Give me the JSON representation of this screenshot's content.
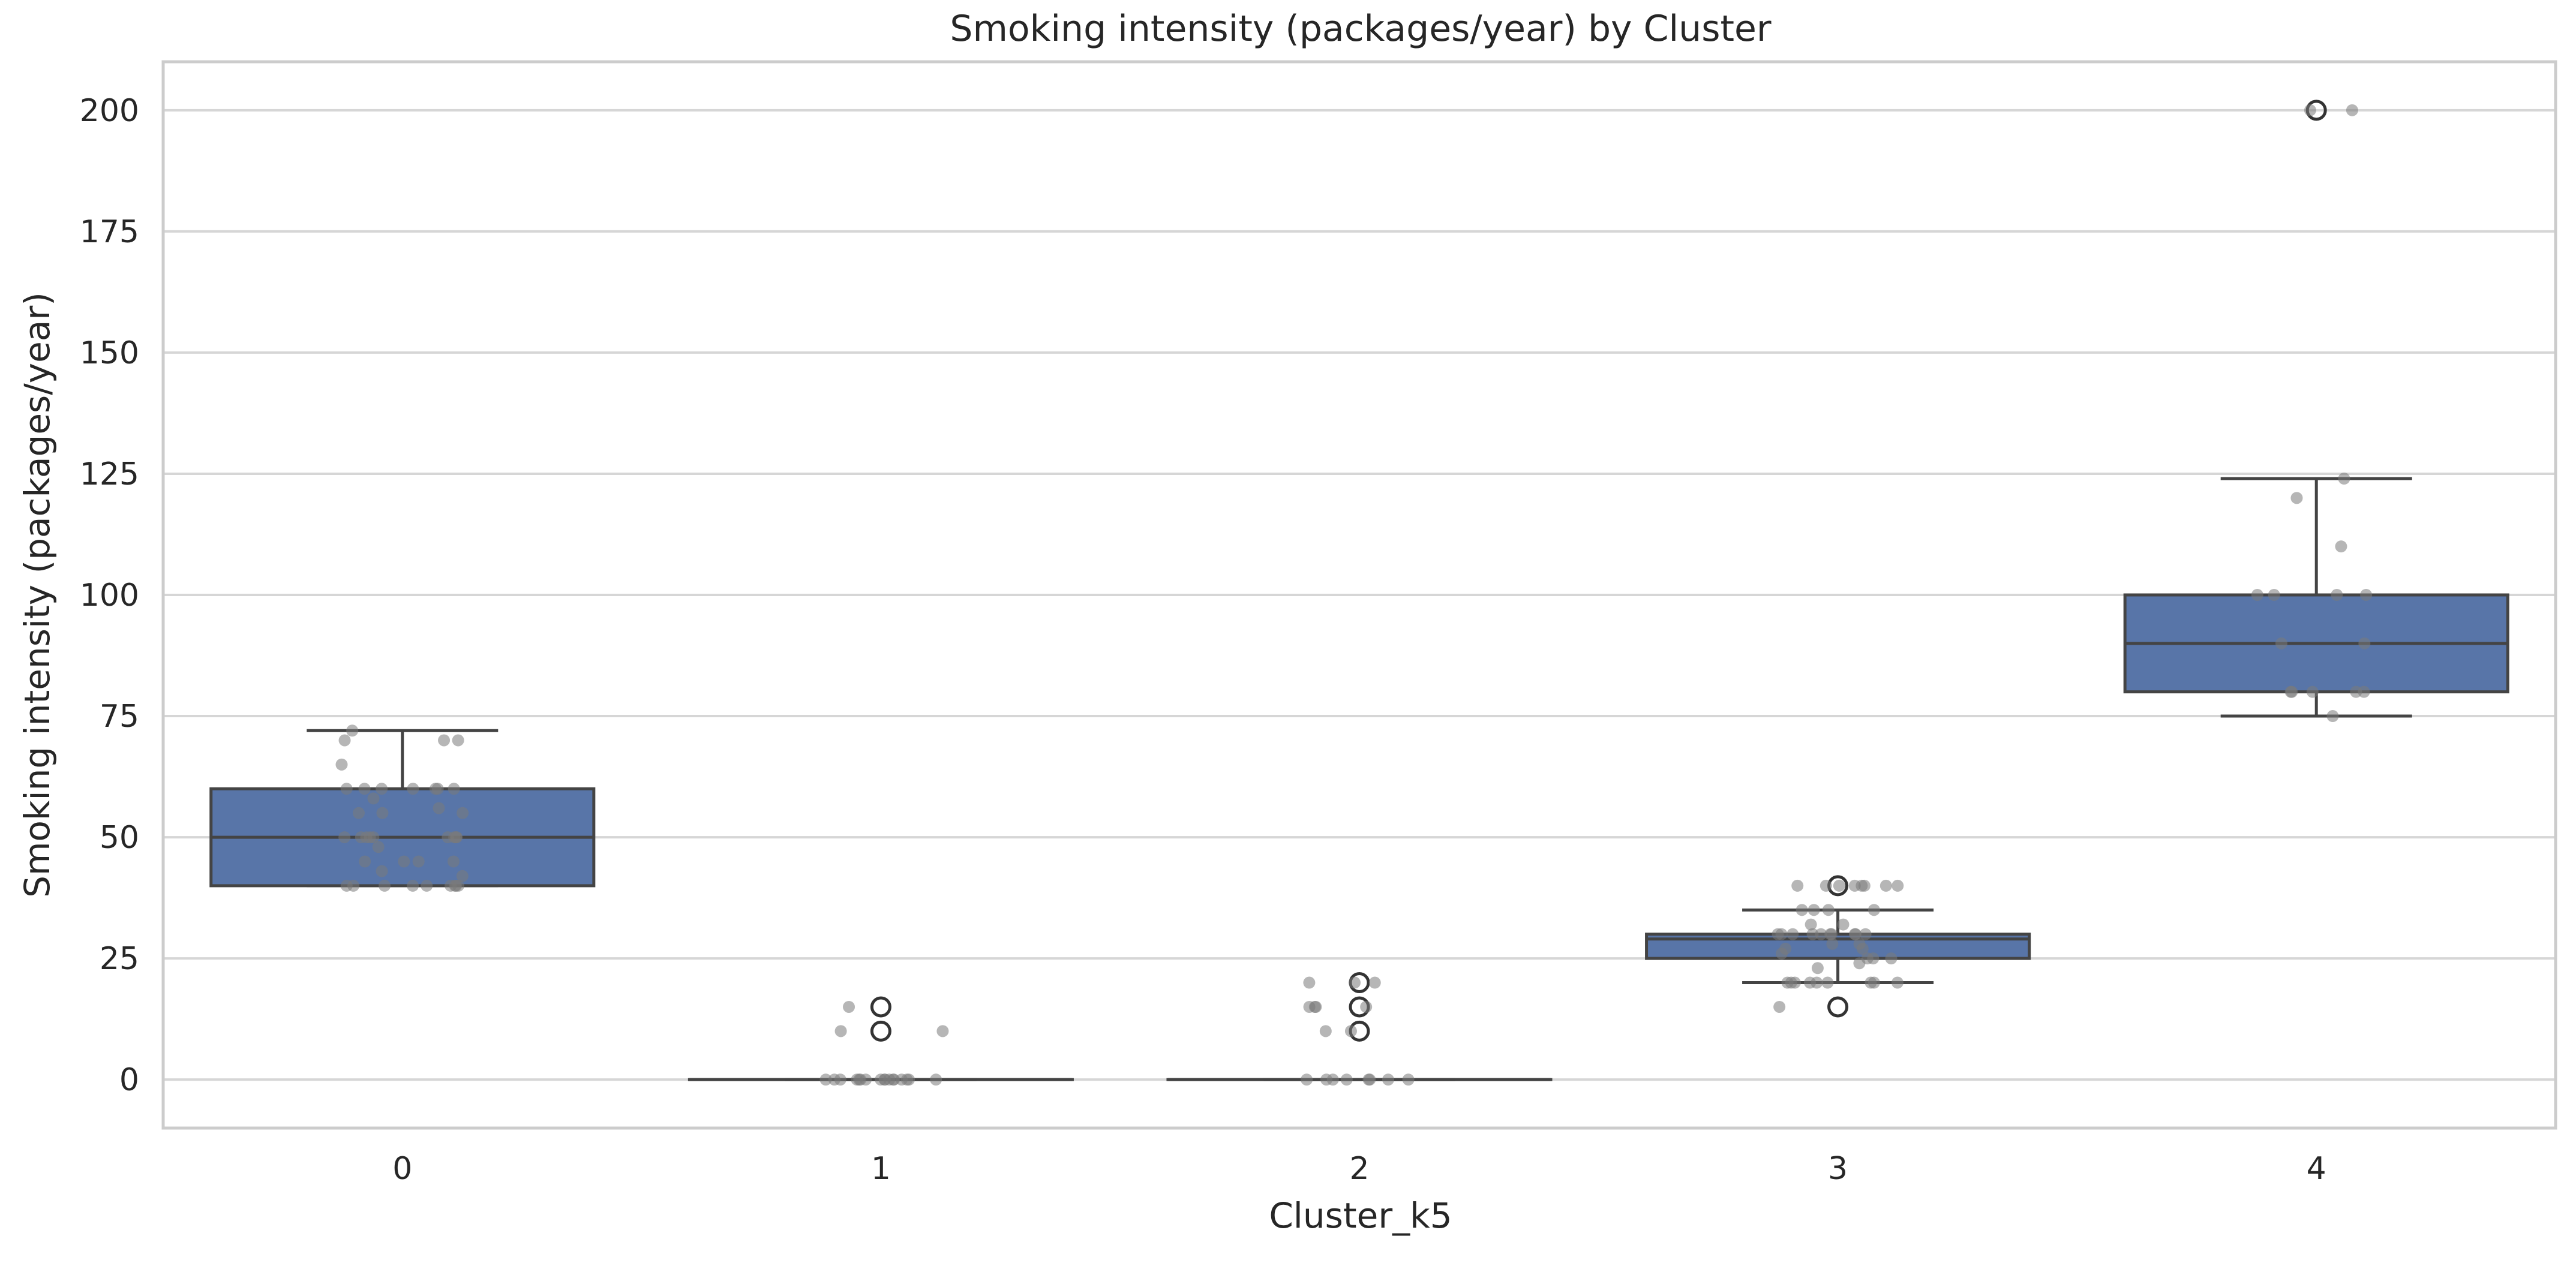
{
  "chart_data": {
    "type": "box",
    "title": "Smoking intensity (packages/year) by Cluster",
    "xlabel": "Cluster_k5",
    "ylabel": "Smoking intensity (packages/year)",
    "categories": [
      "0",
      "1",
      "2",
      "3",
      "4"
    ],
    "ylim": [
      -10,
      210
    ],
    "yticks": [
      0,
      25,
      50,
      75,
      100,
      125,
      150,
      175,
      200
    ],
    "grid": true,
    "colors": {
      "box_fill": "#5875a8",
      "box_edge": "#444444",
      "strip_points": "#7a7a7a",
      "grid": "#d6d6d6",
      "frame": "#cccccc"
    },
    "boxes": [
      {
        "category": "0",
        "whisker_low": 40,
        "q1": 40,
        "median": 50,
        "q3": 60,
        "whisker_high": 72,
        "outliers": []
      },
      {
        "category": "1",
        "whisker_low": 0,
        "q1": 0,
        "median": 0,
        "q3": 0,
        "whisker_high": 0,
        "outliers": [
          15,
          10
        ]
      },
      {
        "category": "2",
        "whisker_low": 0,
        "q1": 0,
        "median": 0,
        "q3": 0,
        "whisker_high": 0,
        "outliers": [
          20,
          15,
          10
        ]
      },
      {
        "category": "3",
        "whisker_low": 20,
        "q1": 25,
        "median": 29,
        "q3": 30,
        "whisker_high": 35,
        "outliers": [
          40,
          15
        ]
      },
      {
        "category": "4",
        "whisker_low": 75,
        "q1": 80,
        "median": 90,
        "q3": 100,
        "whisker_high": 124,
        "outliers": [
          200
        ]
      }
    ],
    "strip_points": [
      {
        "category": "0",
        "values": [
          72,
          70,
          70,
          70,
          65,
          60,
          60,
          60,
          60,
          60,
          60,
          60,
          58,
          56,
          55,
          55,
          55,
          50,
          50,
          50,
          50,
          50,
          50,
          50,
          50,
          50,
          48,
          45,
          45,
          45,
          45,
          43,
          42,
          40,
          40,
          40,
          40,
          40,
          40,
          40,
          40,
          40
        ]
      },
      {
        "category": "1",
        "values": [
          15,
          10,
          10,
          0,
          0,
          0,
          0,
          0,
          0,
          0,
          0,
          0,
          0,
          0,
          0,
          0,
          0,
          0,
          0,
          0
        ]
      },
      {
        "category": "2",
        "values": [
          20,
          20,
          20,
          15,
          15,
          15,
          15,
          10,
          10,
          0,
          0,
          0,
          0,
          0,
          0,
          0,
          0
        ]
      },
      {
        "category": "3",
        "values": [
          40,
          40,
          40,
          40,
          40,
          40,
          40,
          40,
          35,
          35,
          35,
          35,
          32,
          32,
          30,
          30,
          30,
          30,
          30,
          30,
          30,
          30,
          30,
          30,
          28,
          28,
          27,
          27,
          26,
          25,
          25,
          25,
          24,
          23,
          20,
          20,
          20,
          20,
          20,
          20,
          20,
          20,
          20,
          15
        ]
      },
      {
        "category": "4",
        "values": [
          200,
          200,
          124,
          120,
          110,
          100,
          100,
          100,
          100,
          90,
          90,
          80,
          80,
          80,
          80,
          80,
          75
        ]
      }
    ]
  }
}
